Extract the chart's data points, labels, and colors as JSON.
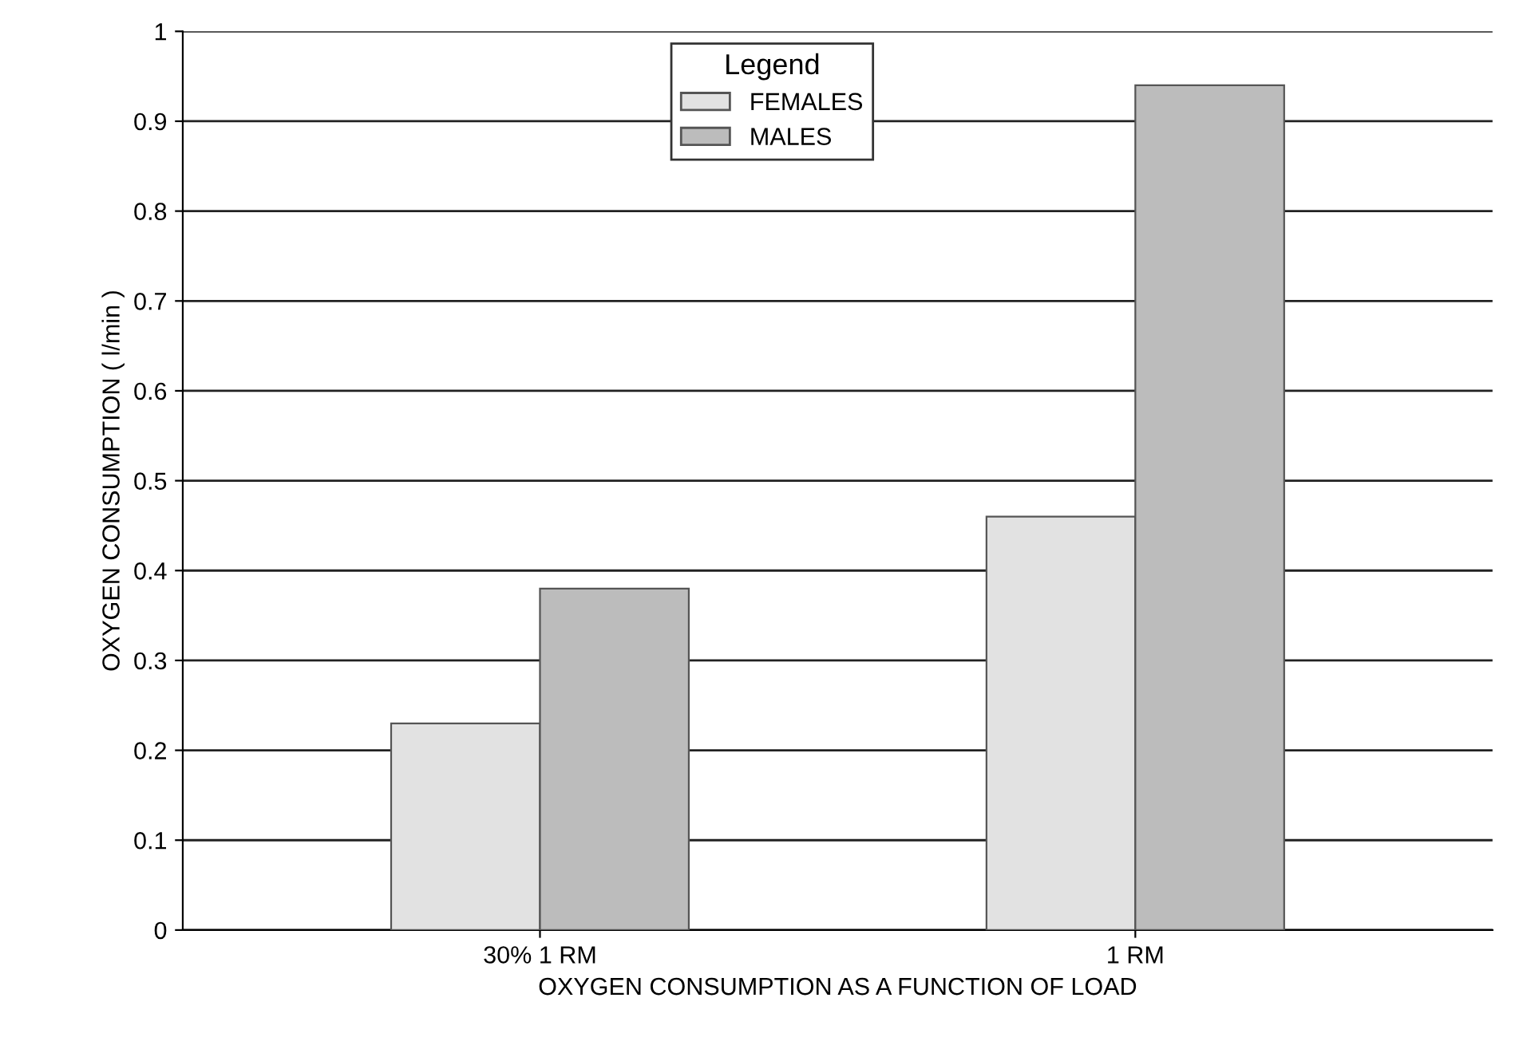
{
  "chart_data": {
    "type": "bar",
    "xlabel": "OXYGEN CONSUMPTION AS A FUNCTION OF LOAD",
    "ylabel": "OXYGEN CONSUMPTION ( l/min )",
    "legend_title": "Legend",
    "legend": "top",
    "categories": [
      "30% 1 RM",
      "1 RM"
    ],
    "series": [
      {
        "name": "FEMALES",
        "color": "#e2e2e2",
        "values": [
          0.23,
          0.46
        ]
      },
      {
        "name": "MALES",
        "color": "#bcbcbc",
        "values": [
          0.38,
          0.94
        ]
      }
    ],
    "ylim": [
      0,
      1
    ],
    "yticks": [
      0,
      0.1,
      0.2,
      0.3,
      0.4,
      0.5,
      0.6,
      0.7,
      0.8,
      0.9,
      1
    ],
    "grid": "y"
  }
}
